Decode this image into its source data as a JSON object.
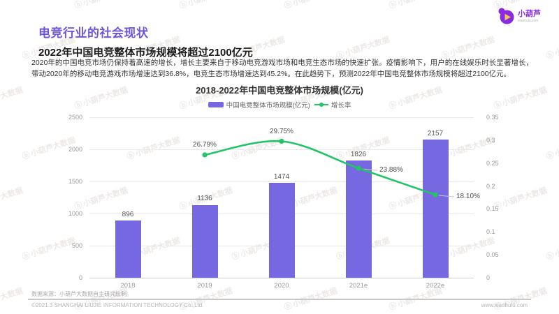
{
  "watermark": {
    "text": "小葫芦大数据",
    "glyph": "ⓑ"
  },
  "logo": {
    "name": "小葫芦",
    "domain": "xiaohulu.com",
    "brand_color": "#8a2be2",
    "play_color": "#f2c94c"
  },
  "header": {
    "section_title": "电竞行业的社会现状",
    "headline": "2022年中国电竞整体市场规模将超过2100亿元",
    "body": "2020年的中国电竞市场仍保持着高速的增长，增长主要来自于移动电竞游戏市场和电竞生态市场的快速扩张。疫情影响下，用户的在线娱乐时长显著增长，带动2020年的移动电竞游戏市场增速达到36.8%，电竞生态市场增速达到45.2%。在此趋势下，预测2022年中国电竞整体市场规模将超过2100亿元。"
  },
  "chart_data": {
    "type": "bar+line",
    "title": "2018-2022年中国电竞整体市场规模(亿元)",
    "categories": [
      "2018",
      "2019",
      "2020",
      "2021e",
      "2022e"
    ],
    "series": [
      {
        "name": "中国电竞整体市场规模(亿元)",
        "type": "bar",
        "axis": "left",
        "color": "#7568e0",
        "values": [
          896,
          1136,
          1474,
          1826,
          2157
        ]
      },
      {
        "name": "增长率",
        "type": "line",
        "axis": "right",
        "color": "#21c566",
        "values": [
          null,
          0.2679,
          0.2975,
          0.2388,
          0.181
        ],
        "point_labels": [
          null,
          "26.79%",
          "29.75%",
          "23.88%",
          "18.10%"
        ],
        "label_placement": [
          null,
          "top",
          "top",
          "right",
          "right"
        ]
      }
    ],
    "left_axis": {
      "min": 0,
      "max": 2500,
      "ticks": [
        "2500",
        "2000",
        "1500",
        "1000",
        "500",
        "0"
      ]
    },
    "right_axis": {
      "min": 0,
      "max": 0.35,
      "ticks": [
        "0.35",
        "0.3",
        "0.25",
        "0.2",
        "0.15",
        "0.1",
        "0.05",
        "0"
      ]
    },
    "legend": [
      "中国电竞整体市场规模(亿元)",
      "增长率"
    ],
    "legend_position": "top",
    "grid": true
  },
  "footer": {
    "source": "数据来源：小葫芦大数据自主研究绘制。",
    "copyright": "©2021.3 SHANGHAI LIUJIE INFORMATION TECHNOLOGY Co.,Ltd.",
    "website": "www.xiaohulu.com"
  }
}
